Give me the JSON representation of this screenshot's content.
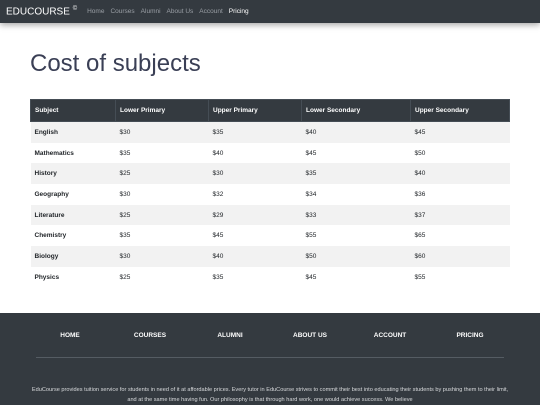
{
  "navbar": {
    "brand": "EDUCOURSE",
    "brand_mark": "©",
    "links": [
      {
        "label": "Home"
      },
      {
        "label": "Courses"
      },
      {
        "label": "Alumni"
      },
      {
        "label": "About Us"
      },
      {
        "label": "Account"
      },
      {
        "label": "Pricing"
      }
    ],
    "active": "Pricing"
  },
  "page": {
    "title": "Cost of subjects"
  },
  "table": {
    "headers": [
      "Subject",
      "Lower Primary",
      "Upper Primary",
      "Lower Secondary",
      "Upper Secondary"
    ],
    "rows": [
      [
        "English",
        "$30",
        "$35",
        "$40",
        "$45"
      ],
      [
        "Mathematics",
        "$35",
        "$40",
        "$45",
        "$50"
      ],
      [
        "History",
        "$25",
        "$30",
        "$35",
        "$40"
      ],
      [
        "Geography",
        "$30",
        "$32",
        "$34",
        "$36"
      ],
      [
        "Literature",
        "$25",
        "$29",
        "$33",
        "$37"
      ],
      [
        "Chemistry",
        "$35",
        "$45",
        "$55",
        "$65"
      ],
      [
        "Biology",
        "$30",
        "$40",
        "$50",
        "$60"
      ],
      [
        "Physics",
        "$25",
        "$35",
        "$45",
        "$55"
      ]
    ]
  },
  "footer": {
    "links": [
      "HOME",
      "COURSES",
      "ALUMNI",
      "ABOUT US",
      "ACCOUNT",
      "PRICING"
    ],
    "text": "EduCourse provides tuition service for students in need of it at affordable prices. Every tutor in EduCourse strives to commit their best into educating their students by pushing them to their limit, and at the same time having fun. Our philosophy is that through hard work, one would achieve success. We believe"
  },
  "colors": {
    "navbar_bg": "#343a40",
    "table_header_bg": "#343a40",
    "footer_bg": "#343a40",
    "stripe": "#f2f2f2",
    "title": "#3a3f55"
  }
}
